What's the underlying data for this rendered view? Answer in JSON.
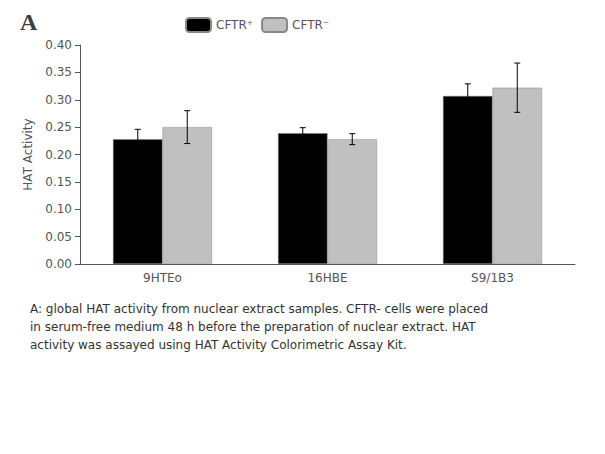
{
  "chart_data": {
    "type": "bar",
    "title": "A",
    "categories": [
      "9HTEo",
      "16HBE",
      "S9/1B3"
    ],
    "series": [
      {
        "name": "CFTR⁺",
        "color": "#000000",
        "values": [
          0.228,
          0.239,
          0.307
        ],
        "errors": [
          0.018,
          0.01,
          0.022
        ]
      },
      {
        "name": "CFTR⁻",
        "color": "#c0c0c0",
        "values": [
          0.25,
          0.228,
          0.322
        ],
        "errors": [
          0.03,
          0.01,
          0.045
        ]
      }
    ],
    "ylabel": "HAT Activity",
    "ylim": [
      0.0,
      0.4
    ],
    "yticks": [
      {
        "value": 0.0,
        "label": "0.00"
      },
      0.05,
      {
        "value": 0.1,
        "label": "0.10"
      },
      0.15,
      {
        "value": 0.2,
        "label": "0.20"
      },
      0.25,
      {
        "value": 0.3,
        "label": "0.30"
      },
      0.35,
      {
        "value": 0.4,
        "label": "0.40"
      }
    ],
    "grid": false,
    "legend": "upper left",
    "annotations": [
      "A: global HAT activity from nuclear extract samples. CFTR- cells were placed\nin serum-free medium 48 h before the preparation of nuclear extract. HAT\nactivity was assayed using HAT Activity Colorimetric Assay Kit."
    ]
  }
}
